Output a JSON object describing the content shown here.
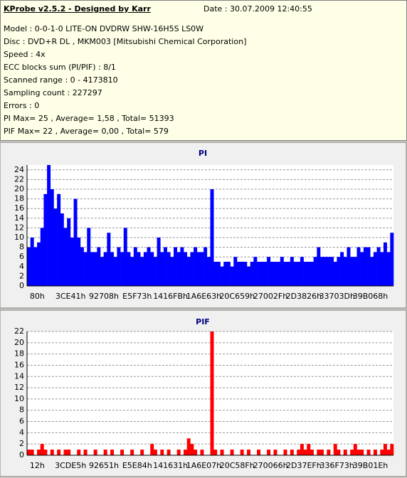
{
  "header": {
    "title": "KProbe v2.5.2 - Designed by Karr",
    "date": "Date : 30.07.2009 12:40:55",
    "lines": [
      "Model : 0-0-1-0 LITE-ON DVDRW SHW-16H5S  LS0W",
      "Disc : DVD+R DL , MKM003 [Mitsubishi Chemical Corporation]",
      "Speed : 4x",
      "ECC blocks sum (PI/PIF) : 8/1",
      "Scanned range : 0 - 4173810",
      "Sampling count : 227297",
      "Errors : 0",
      "PI Max= 25 , Average= 1,58 , Total= 51393",
      "PIF Max= 22 , Average= 0,00 , Total= 579"
    ]
  },
  "chart_data": [
    {
      "type": "bar",
      "title": "PI",
      "color": "#0000ff",
      "grid": true,
      "ylim": [
        0,
        25
      ],
      "yticks": [
        0,
        2,
        4,
        6,
        8,
        10,
        12,
        14,
        16,
        18,
        20,
        22,
        24
      ],
      "categories": [
        "80h",
        null,
        null,
        null,
        null,
        null,
        null,
        null,
        null,
        null,
        "3CE41h",
        null,
        null,
        null,
        null,
        null,
        null,
        null,
        null,
        null,
        "92708h",
        null,
        null,
        null,
        null,
        null,
        null,
        null,
        null,
        null,
        "E5F73h",
        null,
        null,
        null,
        null,
        null,
        null,
        null,
        null,
        null,
        "1416FBh",
        null,
        null,
        null,
        null,
        null,
        null,
        null,
        null,
        null,
        "1A6E63h",
        null,
        null,
        null,
        null,
        null,
        null,
        null,
        null,
        null,
        "20C659h",
        null,
        null,
        null,
        null,
        null,
        null,
        null,
        null,
        null,
        "27002Fh",
        null,
        null,
        null,
        null,
        null,
        null,
        null,
        null,
        null,
        "2D3826h",
        null,
        null,
        null,
        null,
        null,
        null,
        null,
        null,
        null,
        "33703Dh",
        null,
        null,
        null,
        null,
        null,
        null,
        null,
        null,
        null,
        "39B068h",
        null,
        null,
        null,
        null,
        null,
        null,
        null,
        null,
        null
      ],
      "values": [
        8,
        10,
        8,
        9,
        12,
        19,
        25,
        20,
        16,
        19,
        15,
        12,
        14,
        10,
        18,
        10,
        8,
        7,
        12,
        7,
        7,
        8,
        6,
        7,
        11,
        7,
        6,
        8,
        7,
        12,
        7,
        6,
        8,
        7,
        6,
        7,
        8,
        7,
        6,
        10,
        7,
        8,
        7,
        6,
        8,
        7,
        8,
        7,
        6,
        7,
        8,
        7,
        7,
        8,
        6,
        20,
        5,
        5,
        4,
        5,
        5,
        4,
        6,
        5,
        5,
        5,
        4,
        5,
        6,
        5,
        5,
        5,
        6,
        5,
        5,
        5,
        6,
        5,
        5,
        6,
        5,
        5,
        6,
        5,
        5,
        5,
        6,
        8,
        6,
        6,
        6,
        6,
        5,
        6,
        7,
        6,
        8,
        6,
        6,
        8,
        7,
        8,
        8,
        6,
        7,
        8,
        7,
        9,
        7,
        11
      ]
    },
    {
      "type": "bar",
      "title": "PIF",
      "color": "#ff0000",
      "grid": true,
      "ylim": [
        0,
        22
      ],
      "yticks": [
        0,
        2,
        4,
        6,
        8,
        10,
        12,
        14,
        16,
        18,
        20,
        22
      ],
      "categories": [
        "12h",
        null,
        null,
        null,
        null,
        null,
        null,
        null,
        null,
        null,
        "3CDE5h",
        null,
        null,
        null,
        null,
        null,
        null,
        null,
        null,
        null,
        "92651h",
        null,
        null,
        null,
        null,
        null,
        null,
        null,
        null,
        null,
        "E5E84h",
        null,
        null,
        null,
        null,
        null,
        null,
        null,
        null,
        null,
        "141631h",
        null,
        null,
        null,
        null,
        null,
        null,
        null,
        null,
        null,
        "1A6E07h",
        null,
        null,
        null,
        null,
        null,
        null,
        null,
        null,
        null,
        "20C58Fh",
        null,
        null,
        null,
        null,
        null,
        null,
        null,
        null,
        null,
        "270066h",
        null,
        null,
        null,
        null,
        null,
        null,
        null,
        null,
        null,
        "2D37EFh",
        null,
        null,
        null,
        null,
        null,
        null,
        null,
        null,
        null,
        "336F73h",
        null,
        null,
        null,
        null,
        null,
        null,
        null,
        null,
        null,
        "39B01Eh",
        null,
        null,
        null,
        null,
        null,
        null,
        null,
        null,
        null
      ],
      "values": [
        1,
        1,
        0,
        1,
        2,
        1,
        0,
        1,
        0,
        1,
        0,
        1,
        1,
        0,
        0,
        1,
        0,
        1,
        0,
        0,
        1,
        0,
        0,
        1,
        0,
        1,
        0,
        0,
        1,
        0,
        0,
        1,
        0,
        0,
        1,
        0,
        0,
        2,
        1,
        0,
        1,
        0,
        1,
        0,
        0,
        1,
        0,
        1,
        3,
        2,
        1,
        0,
        1,
        0,
        0,
        22,
        1,
        0,
        1,
        0,
        0,
        1,
        0,
        0,
        1,
        0,
        1,
        0,
        0,
        1,
        0,
        0,
        1,
        0,
        1,
        0,
        0,
        1,
        0,
        1,
        0,
        1,
        2,
        1,
        2,
        1,
        0,
        1,
        1,
        0,
        1,
        0,
        2,
        1,
        0,
        1,
        0,
        1,
        2,
        1,
        1,
        0,
        1,
        0,
        1,
        0,
        1,
        2,
        1,
        2
      ]
    }
  ]
}
